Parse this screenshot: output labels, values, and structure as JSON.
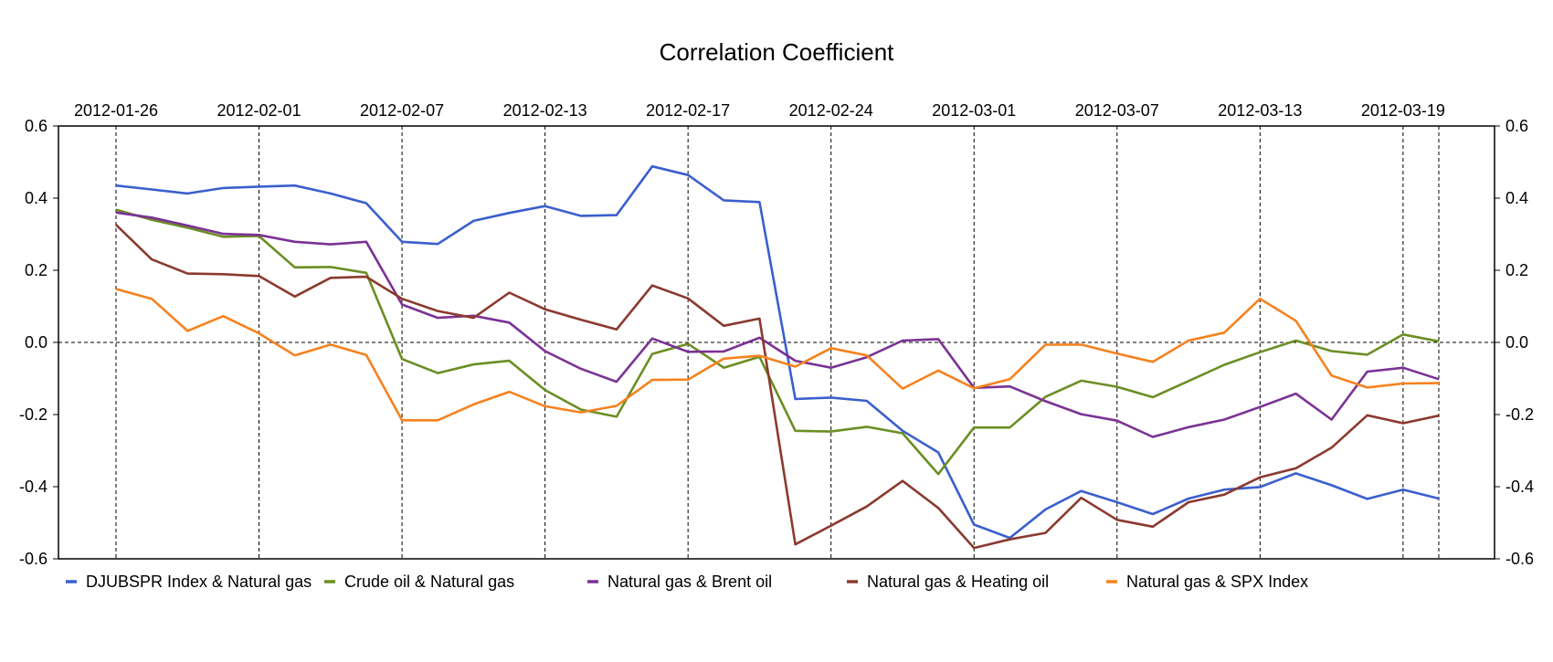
{
  "chart_data": {
    "type": "line",
    "title": "Correlation Coefficient",
    "xlabel": "",
    "ylabel": "",
    "ylim": [
      -0.6,
      0.6
    ],
    "yticks": [
      "0.6",
      "0.4",
      "0.2",
      "0.0",
      "-0.2",
      "-0.4",
      "-0.6"
    ],
    "grid": "vertical dashed at x tick dates; dashed zero line",
    "legend_position": "bottom",
    "x": [
      "2012-01-26",
      "2012-01-27",
      "2012-01-30",
      "2012-01-31",
      "2012-02-01",
      "2012-02-02",
      "2012-02-03",
      "2012-02-06",
      "2012-02-07",
      "2012-02-08",
      "2012-02-09",
      "2012-02-10",
      "2012-02-13",
      "2012-02-14",
      "2012-02-15",
      "2012-02-16",
      "2012-02-17",
      "2012-02-21",
      "2012-02-22",
      "2012-02-23",
      "2012-02-24",
      "2012-02-27",
      "2012-02-28",
      "2012-02-29",
      "2012-03-01",
      "2012-03-02",
      "2012-03-05",
      "2012-03-06",
      "2012-03-07",
      "2012-03-08",
      "2012-03-09",
      "2012-03-12",
      "2012-03-13",
      "2012-03-14",
      "2012-03-15",
      "2012-03-16",
      "2012-03-19",
      "2012-03-20"
    ],
    "xtick_labels": [
      "2012-01-26",
      "2012-02-01",
      "2012-02-07",
      "2012-02-13",
      "2012-02-17",
      "2012-02-24",
      "2012-03-01",
      "2012-03-07",
      "2012-03-13",
      "2012-03-19"
    ],
    "xtick_index": [
      0,
      4,
      8,
      12,
      16,
      20,
      24,
      28,
      32,
      36
    ],
    "extra_gridline_index": [
      37
    ],
    "series": [
      {
        "name": "DJUBSPR Index  &  Natural gas",
        "color": "#3a5fcd",
        "values": [
          0.435,
          0.424,
          0.413,
          0.428,
          0.432,
          0.435,
          0.413,
          0.386,
          0.279,
          0.273,
          0.337,
          0.359,
          0.378,
          0.351,
          0.353,
          0.488,
          0.464,
          0.394,
          0.389,
          -0.157,
          -0.153,
          -0.162,
          -0.245,
          -0.305,
          -0.505,
          -0.542,
          -0.463,
          -0.412,
          -0.443,
          -0.476,
          -0.433,
          -0.408,
          -0.401,
          -0.363,
          -0.396,
          -0.434,
          -0.408,
          -0.433
        ]
      },
      {
        "name": "Crude oil  &  Natural gas",
        "color": "#6b8e23",
        "values": [
          0.368,
          0.34,
          0.318,
          0.293,
          0.295,
          0.208,
          0.209,
          0.193,
          -0.046,
          -0.085,
          -0.061,
          -0.051,
          -0.132,
          -0.186,
          -0.206,
          -0.032,
          -0.004,
          -0.07,
          -0.04,
          -0.245,
          -0.247,
          -0.234,
          -0.252,
          -0.365,
          -0.236,
          -0.236,
          -0.151,
          -0.106,
          -0.123,
          -0.152,
          -0.107,
          -0.062,
          -0.027,
          0.005,
          -0.024,
          -0.034,
          0.022,
          0.003
        ]
      },
      {
        "name": "Natural gas  &  Brent oil",
        "color": "#7b3294",
        "values": [
          0.36,
          0.346,
          0.324,
          0.301,
          0.298,
          0.279,
          0.272,
          0.279,
          0.105,
          0.068,
          0.074,
          0.055,
          -0.024,
          -0.073,
          -0.109,
          0.011,
          -0.026,
          -0.025,
          0.013,
          -0.051,
          -0.07,
          -0.041,
          0.005,
          0.009,
          -0.126,
          -0.122,
          -0.163,
          -0.199,
          -0.217,
          -0.262,
          -0.235,
          -0.214,
          -0.179,
          -0.142,
          -0.214,
          -0.081,
          -0.07,
          -0.102
        ]
      },
      {
        "name": "Natural gas  &  Heating oil",
        "color": "#8b3a2f",
        "values": [
          0.326,
          0.23,
          0.191,
          0.189,
          0.184,
          0.127,
          0.179,
          0.182,
          0.121,
          0.087,
          0.068,
          0.138,
          0.092,
          0.063,
          0.036,
          0.158,
          0.122,
          0.046,
          0.066,
          -0.56,
          -0.508,
          -0.455,
          -0.384,
          -0.459,
          -0.57,
          -0.546,
          -0.528,
          -0.431,
          -0.492,
          -0.511,
          -0.443,
          -0.422,
          -0.374,
          -0.349,
          -0.292,
          -0.202,
          -0.224,
          -0.203
        ]
      },
      {
        "name": "Natural gas  &  SPX Index",
        "color": "#f5821f",
        "values": [
          0.148,
          0.121,
          0.032,
          0.073,
          0.025,
          -0.036,
          -0.006,
          -0.035,
          -0.216,
          -0.216,
          -0.172,
          -0.137,
          -0.177,
          -0.194,
          -0.176,
          -0.104,
          -0.103,
          -0.045,
          -0.037,
          -0.067,
          -0.016,
          -0.036,
          -0.128,
          -0.078,
          -0.127,
          -0.102,
          -0.006,
          -0.006,
          -0.031,
          -0.054,
          0.005,
          0.027,
          0.121,
          0.06,
          -0.092,
          -0.125,
          -0.114,
          -0.113
        ]
      }
    ]
  }
}
